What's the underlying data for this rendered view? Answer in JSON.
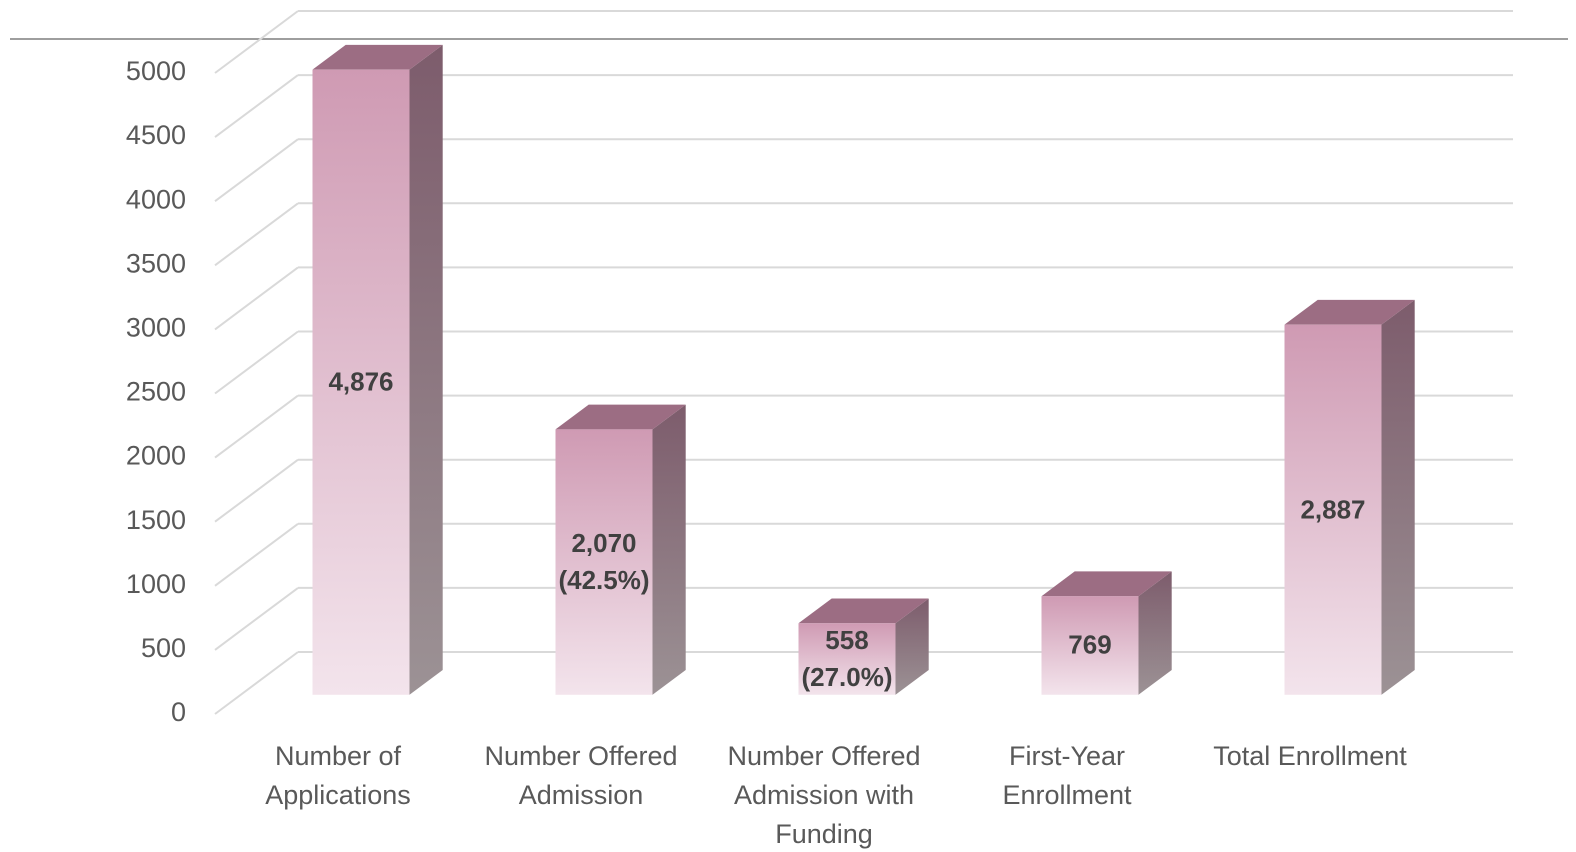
{
  "chart_data": {
    "type": "bar3d",
    "categories": [
      "Number of Applications",
      "Number Offered Admission",
      "Number Offered Admission with Funding",
      "First-Year Enrollment",
      "Total Enrollment"
    ],
    "values": [
      4876,
      2070,
      558,
      769,
      2887
    ],
    "value_labels": [
      "4,876",
      "2,070 (42.5%)",
      "558 (27.0%)",
      "769",
      "2,887"
    ],
    "color": "#cf9ab3",
    "ylim": [
      0,
      5000
    ],
    "yticks": [
      0,
      500,
      1000,
      1500,
      2000,
      2500,
      3000,
      3500,
      4000,
      4500,
      5000
    ],
    "grid": true
  }
}
